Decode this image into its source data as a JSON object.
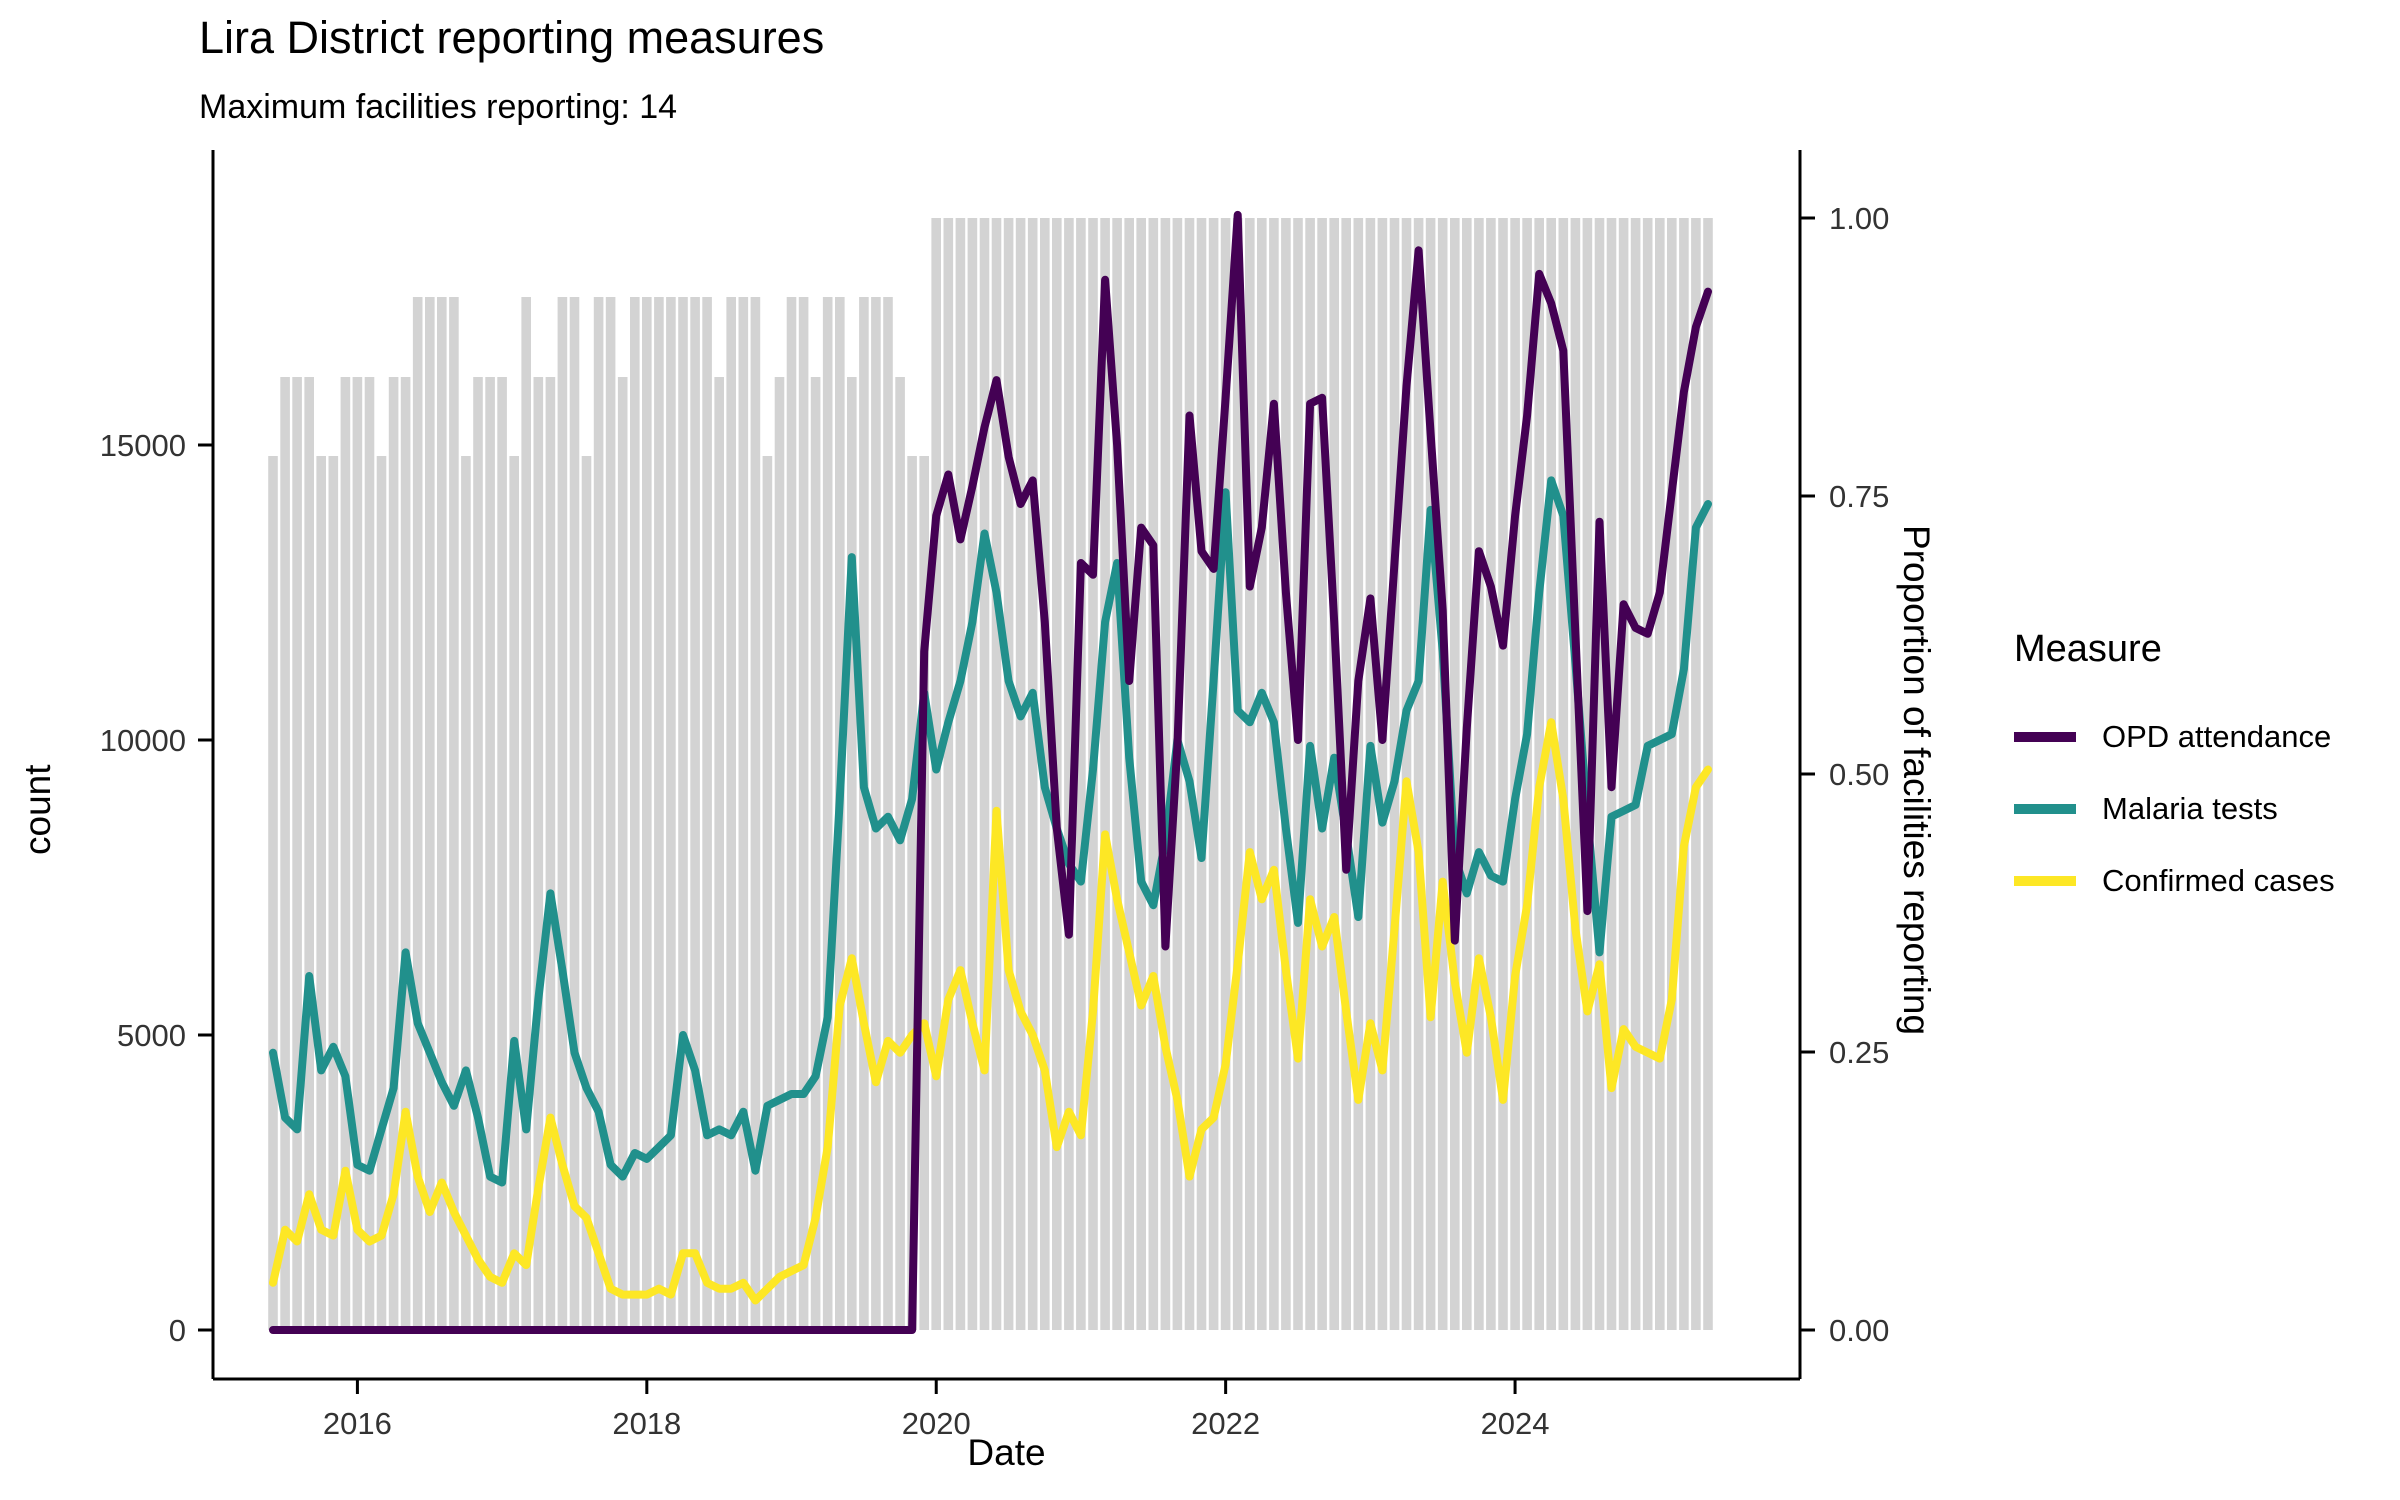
{
  "page": {
    "background": "#ffffff"
  },
  "colors": {
    "bar_fill": "#d3d3d3",
    "opd": "#440154",
    "malaria": "#21908c",
    "confirmed": "#fde725",
    "axis_line": "#000000",
    "tick_text": "#333333",
    "title_text": "#000000"
  },
  "legend": {
    "title": "Measure",
    "items": [
      {
        "label": "OPD attendance",
        "color": "#440154"
      },
      {
        "label": "Malaria tests",
        "color": "#21908c"
      },
      {
        "label": "Confirmed cases",
        "color": "#fde725"
      }
    ]
  },
  "chart_data": {
    "type": "line",
    "title": "Lira District reporting measures",
    "subtitle": "Maximum facilities reporting: 14",
    "max_facilities_reporting": 14,
    "grid": false,
    "legend_position": "right",
    "x_axis": {
      "label": "Date",
      "tick_labels": [
        "2016",
        "2018",
        "2020",
        "2022",
        "2024"
      ],
      "tick_years": [
        2016,
        2018,
        2020,
        2022,
        2024
      ]
    },
    "y_left_axis": {
      "label": "count",
      "tick_labels": [
        "0",
        "5000",
        "10000",
        "15000"
      ],
      "tick_values": [
        0,
        5000,
        10000,
        15000
      ],
      "range": [
        0,
        19500
      ]
    },
    "y_right_axis": {
      "label": "Proportion of facilities reporting",
      "tick_labels": [
        "0.00",
        "0.25",
        "0.50",
        "0.75",
        "1.00"
      ],
      "tick_values": [
        0,
        0.25,
        0.5,
        0.75,
        1
      ],
      "range": [
        0,
        1
      ]
    },
    "start_month": "2015-06",
    "n_months": 120,
    "bars": {
      "name": "Proportion of facilities reporting",
      "axis": "right",
      "color": "#d3d3d3",
      "values": [
        0.786,
        0.857,
        0.857,
        0.857,
        0.786,
        0.786,
        0.857,
        0.857,
        0.857,
        0.786,
        0.857,
        0.857,
        0.929,
        0.929,
        0.929,
        0.929,
        0.786,
        0.857,
        0.857,
        0.857,
        0.786,
        0.929,
        0.857,
        0.857,
        0.929,
        0.929,
        0.786,
        0.929,
        0.929,
        0.857,
        0.929,
        0.929,
        0.929,
        0.929,
        0.929,
        0.929,
        0.929,
        0.857,
        0.929,
        0.929,
        0.929,
        0.786,
        0.857,
        0.929,
        0.929,
        0.857,
        0.929,
        0.929,
        0.857,
        0.929,
        0.929,
        0.929,
        0.857,
        0.786,
        0.786,
        1,
        1,
        1,
        1,
        1,
        1,
        1,
        1,
        1,
        1,
        1,
        1,
        1,
        1,
        1,
        1,
        1,
        1,
        1,
        1,
        1,
        1,
        1,
        1,
        1,
        1,
        1,
        1,
        1,
        1,
        1,
        1,
        1,
        1,
        1,
        1,
        1,
        1,
        1,
        1,
        1,
        1,
        1,
        1,
        1,
        1,
        1,
        1,
        1,
        1,
        1,
        1,
        1,
        1,
        1,
        1,
        1,
        1,
        1,
        1,
        1,
        1,
        1,
        1,
        1
      ]
    },
    "series": [
      {
        "name": "OPD attendance",
        "axis": "left",
        "color": "#440154",
        "values": [
          0,
          0,
          0,
          0,
          0,
          0,
          0,
          0,
          0,
          0,
          0,
          0,
          0,
          0,
          0,
          0,
          0,
          0,
          0,
          0,
          0,
          0,
          0,
          0,
          0,
          0,
          0,
          0,
          0,
          0,
          0,
          0,
          0,
          0,
          0,
          0,
          0,
          0,
          0,
          0,
          0,
          0,
          0,
          0,
          0,
          0,
          0,
          0,
          0,
          0,
          0,
          0,
          0,
          0,
          11500,
          13800,
          14500,
          13400,
          14300,
          15300,
          16100,
          14800,
          14000,
          14400,
          12000,
          8500,
          6700,
          13000,
          12800,
          17800,
          15000,
          11000,
          13600,
          13300,
          6500,
          9900,
          15500,
          13200,
          12900,
          15800,
          18900,
          12600,
          13600,
          15700,
          12500,
          10000,
          15700,
          15800,
          12000,
          7800,
          11000,
          12400,
          10000,
          13000,
          16000,
          18300,
          15200,
          12200,
          6600,
          10200,
          13200,
          12600,
          11600,
          13800,
          15500,
          17900,
          17400,
          16600,
          11800,
          7100,
          13700,
          9200,
          12300,
          11900,
          11800,
          12500,
          14200,
          15900,
          17000,
          17600
        ]
      },
      {
        "name": "Malaria tests",
        "axis": "left",
        "color": "#21908c",
        "values": [
          4700,
          3600,
          3400,
          6000,
          4400,
          4800,
          4300,
          2800,
          2700,
          3400,
          4100,
          6400,
          5200,
          4700,
          4200,
          3800,
          4400,
          3600,
          2600,
          2500,
          4900,
          3400,
          5600,
          7400,
          6100,
          4700,
          4100,
          3700,
          2800,
          2600,
          3000,
          2900,
          3100,
          3300,
          5000,
          4400,
          3300,
          3400,
          3300,
          3700,
          2700,
          3800,
          3900,
          4000,
          4000,
          4300,
          5300,
          9000,
          13100,
          9200,
          8500,
          8700,
          8300,
          9000,
          10800,
          9500,
          10300,
          11000,
          12000,
          13500,
          12500,
          11000,
          10400,
          10800,
          9200,
          8500,
          7900,
          7600,
          9500,
          12000,
          13000,
          9700,
          7600,
          7200,
          8300,
          10000,
          9300,
          8000,
          11000,
          14200,
          10500,
          10300,
          10800,
          10300,
          8500,
          6900,
          9900,
          8500,
          9700,
          8400,
          7000,
          9900,
          8600,
          9300,
          10500,
          11000,
          13900,
          11500,
          8000,
          7400,
          8100,
          7700,
          7600,
          9000,
          10100,
          12500,
          14400,
          13800,
          11300,
          8700,
          6400,
          8700,
          8800,
          8900,
          9900,
          10000,
          10100,
          11200,
          13600,
          14000
        ]
      },
      {
        "name": "Confirmed cases",
        "axis": "left",
        "color": "#fde725",
        "values": [
          800,
          1700,
          1500,
          2300,
          1700,
          1600,
          2700,
          1700,
          1500,
          1600,
          2300,
          3700,
          2600,
          2000,
          2500,
          2000,
          1600,
          1200,
          900,
          800,
          1300,
          1100,
          2400,
          3600,
          2800,
          2100,
          1900,
          1300,
          700,
          600,
          600,
          600,
          700,
          600,
          1300,
          1300,
          800,
          700,
          700,
          800,
          500,
          700,
          900,
          1000,
          1100,
          1900,
          3100,
          5500,
          6300,
          5200,
          4200,
          4900,
          4700,
          5000,
          5200,
          4300,
          5600,
          6100,
          5200,
          4400,
          8800,
          6100,
          5400,
          5000,
          4400,
          3100,
          3700,
          3300,
          5400,
          8400,
          7300,
          6400,
          5500,
          6000,
          4800,
          3900,
          2600,
          3400,
          3600,
          4500,
          6200,
          8100,
          7300,
          7800,
          6100,
          4600,
          7300,
          6500,
          7000,
          5400,
          3900,
          5200,
          4400,
          6800,
          9300,
          8100,
          5300,
          7600,
          5900,
          4700,
          6300,
          5300,
          3900,
          6000,
          7200,
          9200,
          10300,
          9000,
          6800,
          5400,
          6200,
          4100,
          5100,
          4800,
          4700,
          4600,
          5600,
          8200,
          9200,
          9500
        ]
      }
    ]
  }
}
